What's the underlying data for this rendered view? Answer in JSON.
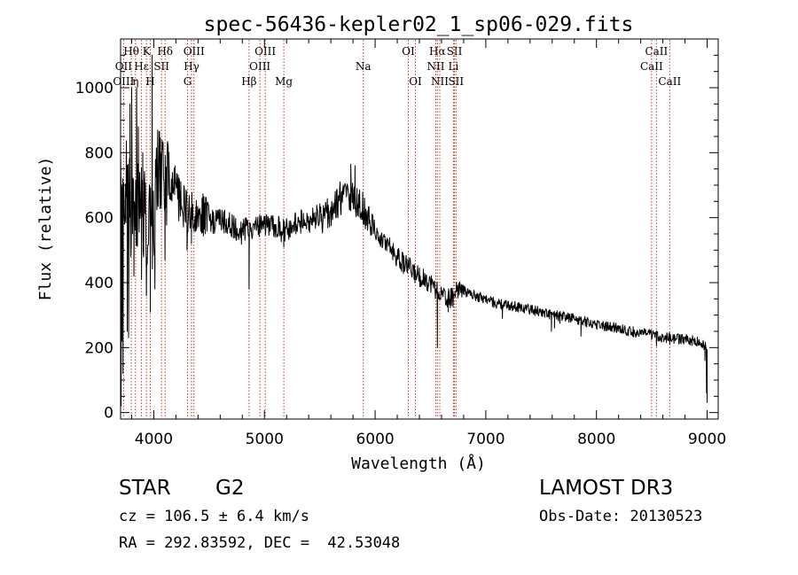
{
  "chart_data": {
    "type": "line",
    "title": "spec-56436-kepler02_1_sp06-029.fits",
    "xlabel": "Wavelength (Å)",
    "ylabel": "Flux (relative)",
    "xlim": [
      3700,
      9100
    ],
    "ylim": [
      -20,
      1150
    ],
    "x_ticks": [
      4000,
      5000,
      6000,
      7000,
      8000,
      9000
    ],
    "y_ticks": [
      0,
      200,
      400,
      600,
      800,
      1000
    ],
    "grid": false,
    "line_color": "#000000",
    "marker_color": "#c0392b",
    "spectrum_knots": [
      [
        3700,
        740
      ],
      [
        3750,
        700
      ],
      [
        3800,
        610
      ],
      [
        3850,
        640
      ],
      [
        3900,
        620
      ],
      [
        3950,
        560
      ],
      [
        4000,
        600
      ],
      [
        4050,
        740
      ],
      [
        4100,
        720
      ],
      [
        4150,
        690
      ],
      [
        4200,
        690
      ],
      [
        4250,
        640
      ],
      [
        4300,
        620
      ],
      [
        4350,
        620
      ],
      [
        4400,
        620
      ],
      [
        4450,
        610
      ],
      [
        4500,
        590
      ],
      [
        4550,
        585
      ],
      [
        4600,
        590
      ],
      [
        4650,
        585
      ],
      [
        4700,
        575
      ],
      [
        4750,
        560
      ],
      [
        4800,
        555
      ],
      [
        4850,
        570
      ],
      [
        4900,
        570
      ],
      [
        4950,
        570
      ],
      [
        5000,
        570
      ],
      [
        5050,
        575
      ],
      [
        5100,
        575
      ],
      [
        5150,
        560
      ],
      [
        5200,
        560
      ],
      [
        5250,
        580
      ],
      [
        5300,
        585
      ],
      [
        5350,
        590
      ],
      [
        5400,
        590
      ],
      [
        5450,
        600
      ],
      [
        5500,
        605
      ],
      [
        5550,
        610
      ],
      [
        5600,
        625
      ],
      [
        5650,
        645
      ],
      [
        5700,
        660
      ],
      [
        5750,
        660
      ],
      [
        5800,
        665
      ],
      [
        5850,
        640
      ],
      [
        5900,
        620
      ],
      [
        5950,
        580
      ],
      [
        6000,
        560
      ],
      [
        6050,
        540
      ],
      [
        6100,
        520
      ],
      [
        6150,
        500
      ],
      [
        6200,
        480
      ],
      [
        6250,
        460
      ],
      [
        6300,
        450
      ],
      [
        6350,
        430
      ],
      [
        6400,
        420
      ],
      [
        6450,
        410
      ],
      [
        6500,
        400
      ],
      [
        6550,
        380
      ],
      [
        6600,
        360
      ],
      [
        6650,
        350
      ],
      [
        6700,
        355
      ],
      [
        6750,
        385
      ],
      [
        6800,
        375
      ],
      [
        6900,
        360
      ],
      [
        7000,
        350
      ],
      [
        7100,
        335
      ],
      [
        7200,
        330
      ],
      [
        7300,
        325
      ],
      [
        7400,
        318
      ],
      [
        7500,
        310
      ],
      [
        7600,
        300
      ],
      [
        7700,
        295
      ],
      [
        7800,
        290
      ],
      [
        7900,
        280
      ],
      [
        8000,
        272
      ],
      [
        8100,
        265
      ],
      [
        8200,
        260
      ],
      [
        8300,
        250
      ],
      [
        8400,
        245
      ],
      [
        8500,
        240
      ],
      [
        8600,
        232
      ],
      [
        8700,
        228
      ],
      [
        8800,
        225
      ],
      [
        8900,
        220
      ],
      [
        8950,
        210
      ],
      [
        9000,
        200
      ]
    ],
    "spectrum_features": [
      {
        "x": 3705,
        "y": 20
      },
      {
        "x": 3712,
        "y": 220
      },
      {
        "x": 3722,
        "y": 120
      },
      {
        "x": 3734,
        "y": 600
      },
      {
        "x": 3760,
        "y": 250
      },
      {
        "x": 3772,
        "y": 230
      },
      {
        "x": 3785,
        "y": 950
      },
      {
        "x": 3800,
        "y": 1000
      },
      {
        "x": 3820,
        "y": 420
      },
      {
        "x": 3845,
        "y": 1000
      },
      {
        "x": 3860,
        "y": 880
      },
      {
        "x": 3889,
        "y": 410
      },
      {
        "x": 3900,
        "y": 800
      },
      {
        "x": 3933,
        "y": 360
      },
      {
        "x": 3968,
        "y": 310
      },
      {
        "x": 3985,
        "y": 1100
      },
      {
        "x": 4010,
        "y": 380
      },
      {
        "x": 4035,
        "y": 870
      },
      {
        "x": 4060,
        "y": 640
      },
      {
        "x": 4101,
        "y": 470
      },
      {
        "x": 4130,
        "y": 820
      },
      {
        "x": 4226,
        "y": 590
      },
      {
        "x": 4300,
        "y": 500
      },
      {
        "x": 4340,
        "y": 520
      },
      {
        "x": 4383,
        "y": 560
      },
      {
        "x": 4861,
        "y": 380
      },
      {
        "x": 5175,
        "y": 510
      },
      {
        "x": 5270,
        "y": 560
      },
      {
        "x": 5780,
        "y": 765
      },
      {
        "x": 5818,
        "y": 760
      },
      {
        "x": 5893,
        "y": 580
      },
      {
        "x": 6563,
        "y": 200
      },
      {
        "x": 6660,
        "y": 310
      },
      {
        "x": 6690,
        "y": 330
      },
      {
        "x": 7150,
        "y": 290
      },
      {
        "x": 7593,
        "y": 250
      },
      {
        "x": 7620,
        "y": 260
      },
      {
        "x": 7670,
        "y": 275
      },
      {
        "x": 7860,
        "y": 235
      },
      {
        "x": 8498,
        "y": 225
      },
      {
        "x": 8542,
        "y": 205
      },
      {
        "x": 8662,
        "y": 210
      },
      {
        "x": 8980,
        "y": 160
      },
      {
        "x": 8995,
        "y": 60
      },
      {
        "x": 9000,
        "y": 30
      }
    ],
    "line_markers": [
      {
        "label": "Hθ",
        "x": 3797,
        "row": 0
      },
      {
        "label": "OII",
        "x": 3727,
        "row": 1
      },
      {
        "label": "OIII",
        "x": 3727,
        "row": 2
      },
      {
        "label": "Hε",
        "x": 3889,
        "row": 1
      },
      {
        "label": "η",
        "x": 3835,
        "row": 2
      },
      {
        "label": "K",
        "x": 3934,
        "row": 0
      },
      {
        "label": "H",
        "x": 3968,
        "row": 2
      },
      {
        "label": "SII",
        "x": 4070,
        "row": 1
      },
      {
        "label": "Hδ",
        "x": 4102,
        "row": 0
      },
      {
        "label": "OIII",
        "x": 4363,
        "row": 0
      },
      {
        "label": "Hγ",
        "x": 4341,
        "row": 1
      },
      {
        "label": "G",
        "x": 4305,
        "row": 2
      },
      {
        "label": "OIII",
        "x": 5007,
        "row": 0
      },
      {
        "label": "OIII",
        "x": 4959,
        "row": 1
      },
      {
        "label": "Hβ",
        "x": 4861,
        "row": 2
      },
      {
        "label": "Mg",
        "x": 5175,
        "row": 2
      },
      {
        "label": "Na",
        "x": 5893,
        "row": 1
      },
      {
        "label": "OI",
        "x": 6300,
        "row": 0
      },
      {
        "label": "OI",
        "x": 6364,
        "row": 2
      },
      {
        "label": "Hα",
        "x": 6563,
        "row": 0
      },
      {
        "label": "SII",
        "x": 6717,
        "row": 0
      },
      {
        "label": "NII",
        "x": 6548,
        "row": 1
      },
      {
        "label": "Li",
        "x": 6708,
        "row": 1
      },
      {
        "label": "NII",
        "x": 6584,
        "row": 2
      },
      {
        "label": "SII",
        "x": 6731,
        "row": 2
      },
      {
        "label": "CaII",
        "x": 8542,
        "row": 0
      },
      {
        "label": "CaII",
        "x": 8498,
        "row": 1
      },
      {
        "label": "CaII",
        "x": 8662,
        "row": 2
      }
    ]
  },
  "info": {
    "object_class": "STAR",
    "subclass": "G2",
    "survey": "LAMOST DR3",
    "redshift": "cz = 106.5 ± 6.4 km/s",
    "obs_date": "Obs-Date: 20130523",
    "coords": "RA = 292.83592, DEC =  42.53048"
  }
}
